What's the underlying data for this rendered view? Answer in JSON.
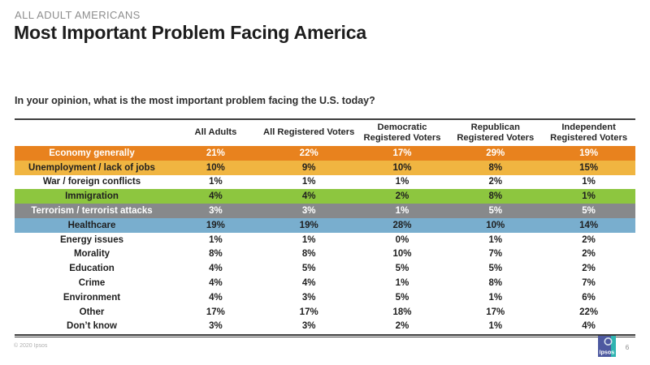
{
  "slide": {
    "eyebrow": "ALL ADULT AMERICANS",
    "title": "Most Important Problem Facing America",
    "question": "In your opinion, what is the most important problem facing the U.S. today?",
    "footer": {
      "copyright": "© 2020 Ipsos",
      "page_number": "6",
      "logo_text": "Ipsos"
    }
  },
  "colors": {
    "economy_orange": "#E8821E",
    "unemployment_yellow": "#F0B541",
    "immigration_green": "#8DC63F",
    "terrorism_gray": "#87898B",
    "healthcare_blue": "#79AECE",
    "table_border": "#3E3E3E",
    "logo_indigo": "#4D59A0",
    "logo_teal": "#2FB4B1"
  },
  "table": {
    "columns": [
      {
        "line1": "All Adults",
        "line2": ""
      },
      {
        "line1": "All Registered Voters",
        "line2": ""
      },
      {
        "line1": "Democratic",
        "line2": "Registered Voters"
      },
      {
        "line1": "Republican",
        "line2": "Registered Voters"
      },
      {
        "line1": "Independent",
        "line2": "Registered Voters"
      }
    ],
    "rows": [
      {
        "label": "Economy generally",
        "values": [
          "21%",
          "22%",
          "17%",
          "29%",
          "19%"
        ],
        "bg": "#E8821E",
        "fg": "#FFFFFF"
      },
      {
        "label": "Unemployment / lack of jobs",
        "values": [
          "10%",
          "9%",
          "10%",
          "8%",
          "15%"
        ],
        "bg": "#F0B541",
        "fg": "#1F1F1F"
      },
      {
        "label": "War / foreign conflicts",
        "values": [
          "1%",
          "1%",
          "1%",
          "2%",
          "1%"
        ],
        "bg": "#FFFFFF",
        "fg": "#1F1F1F"
      },
      {
        "label": "Immigration",
        "values": [
          "4%",
          "4%",
          "2%",
          "8%",
          "1%"
        ],
        "bg": "#8DC63F",
        "fg": "#1F1F1F"
      },
      {
        "label": "Terrorism / terrorist attacks",
        "values": [
          "3%",
          "3%",
          "1%",
          "5%",
          "5%"
        ],
        "bg": "#87898B",
        "fg": "#FFFFFF"
      },
      {
        "label": "Healthcare",
        "values": [
          "19%",
          "19%",
          "28%",
          "10%",
          "14%"
        ],
        "bg": "#79AECE",
        "fg": "#1F1F1F"
      },
      {
        "label": "Energy issues",
        "values": [
          "1%",
          "1%",
          "0%",
          "1%",
          "2%"
        ],
        "bg": "#FFFFFF",
        "fg": "#1F1F1F"
      },
      {
        "label": "Morality",
        "values": [
          "8%",
          "8%",
          "10%",
          "7%",
          "2%"
        ],
        "bg": "#FFFFFF",
        "fg": "#1F1F1F"
      },
      {
        "label": "Education",
        "values": [
          "4%",
          "5%",
          "5%",
          "5%",
          "2%"
        ],
        "bg": "#FFFFFF",
        "fg": "#1F1F1F"
      },
      {
        "label": "Crime",
        "values": [
          "4%",
          "4%",
          "1%",
          "8%",
          "7%"
        ],
        "bg": "#FFFFFF",
        "fg": "#1F1F1F"
      },
      {
        "label": "Environment",
        "values": [
          "4%",
          "3%",
          "5%",
          "1%",
          "6%"
        ],
        "bg": "#FFFFFF",
        "fg": "#1F1F1F"
      },
      {
        "label": "Other",
        "values": [
          "17%",
          "17%",
          "18%",
          "17%",
          "22%"
        ],
        "bg": "#FFFFFF",
        "fg": "#1F1F1F"
      },
      {
        "label": "Don’t know",
        "values": [
          "3%",
          "3%",
          "2%",
          "1%",
          "4%"
        ],
        "bg": "#FFFFFF",
        "fg": "#1F1F1F"
      }
    ]
  },
  "chart_data": {
    "type": "table",
    "title": "Most Important Problem Facing America",
    "subtitle": "ALL ADULT AMERICANS",
    "question": "In your opinion, what is the most important problem facing the U.S. today?",
    "categories": [
      "Economy generally",
      "Unemployment / lack of jobs",
      "War / foreign conflicts",
      "Immigration",
      "Terrorism / terrorist attacks",
      "Healthcare",
      "Energy issues",
      "Morality",
      "Education",
      "Crime",
      "Environment",
      "Other",
      "Don’t know"
    ],
    "units": "percent",
    "series": [
      {
        "name": "All Adults",
        "values": [
          21,
          10,
          1,
          4,
          3,
          19,
          1,
          8,
          4,
          4,
          4,
          17,
          3
        ]
      },
      {
        "name": "All Registered Voters",
        "values": [
          22,
          9,
          1,
          4,
          3,
          19,
          1,
          8,
          5,
          4,
          3,
          17,
          3
        ]
      },
      {
        "name": "Democratic Registered Voters",
        "values": [
          17,
          10,
          1,
          2,
          1,
          28,
          0,
          10,
          5,
          1,
          5,
          18,
          2
        ]
      },
      {
        "name": "Republican Registered Voters",
        "values": [
          29,
          8,
          2,
          8,
          5,
          10,
          1,
          7,
          5,
          8,
          1,
          17,
          1
        ]
      },
      {
        "name": "Independent Registered Voters",
        "values": [
          19,
          15,
          1,
          1,
          5,
          14,
          2,
          2,
          2,
          7,
          6,
          22,
          4
        ]
      }
    ],
    "highlighted_rows": [
      {
        "category": "Economy generally",
        "color": "#E8821E"
      },
      {
        "category": "Unemployment / lack of jobs",
        "color": "#F0B541"
      },
      {
        "category": "Immigration",
        "color": "#8DC63F"
      },
      {
        "category": "Terrorism / terrorist attacks",
        "color": "#87898B"
      },
      {
        "category": "Healthcare",
        "color": "#79AECE"
      }
    ]
  }
}
